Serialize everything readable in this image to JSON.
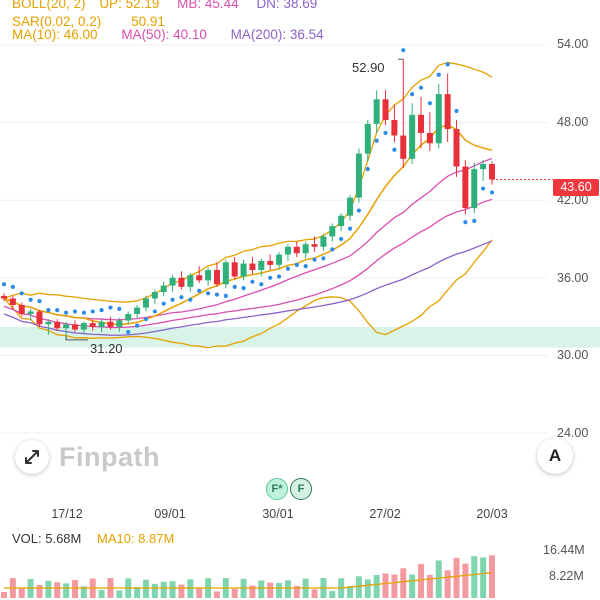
{
  "legend": {
    "boll": "BOLL(20, 2)",
    "up": "UP: 52.19",
    "mb": "MB: 45.44",
    "dn": "DN: 38.69",
    "sar": "SAR(0.02, 0.2)",
    "sar_value": "50.91",
    "ma10": "MA(10): 46.00",
    "ma50": "MA(50): 40.10",
    "ma200": "MA(200): 36.54"
  },
  "colors": {
    "boll": "#e6a100",
    "sar": "#2b8be6",
    "ma10": "#e6a100",
    "ma50": "#d94fb0",
    "ma200": "#8a64c8",
    "up_candle": "#2fb07a",
    "down_candle": "#e8303a",
    "zone": "#d8f3e8",
    "vol_up": "#7fd6ae",
    "vol_down": "#f29a9f"
  },
  "price_axis": [
    "54.00",
    "48.00",
    "42.00",
    "36.00",
    "30.00",
    "24.00"
  ],
  "date_axis": [
    "17/12",
    "09/01",
    "30/01",
    "27/02",
    "20/03"
  ],
  "annotations": {
    "high": "52.90",
    "low": "31.20",
    "current_price": "43.60"
  },
  "brand": {
    "name": "Finpath",
    "expand_icon": "expand-arrows-icon"
  },
  "buttons": {
    "a_label": "A",
    "f_star": "F*",
    "f": "F"
  },
  "volume": {
    "vol": "VOL: 5.68M",
    "ma10": "MA10: 8.87M",
    "axis_top": "16.44M",
    "axis_mid": "8.22M"
  },
  "chart_data": {
    "type": "candlestick",
    "y_range": [
      24,
      56
    ],
    "support_zone": [
      30.6,
      32.2
    ],
    "candles": [
      [
        34.6,
        34.8,
        34.2,
        34.4
      ],
      [
        34.4,
        34.6,
        33.6,
        33.9
      ],
      [
        33.9,
        34.1,
        33.0,
        33.2
      ],
      [
        33.2,
        33.6,
        32.7,
        33.4
      ],
      [
        33.4,
        33.5,
        32.2,
        32.4
      ],
      [
        32.4,
        32.8,
        31.6,
        32.6
      ],
      [
        32.6,
        32.8,
        31.9,
        32.1
      ],
      [
        32.1,
        32.6,
        31.2,
        32.4
      ],
      [
        32.4,
        32.7,
        31.8,
        32.0
      ],
      [
        32.0,
        32.6,
        31.7,
        32.5
      ],
      [
        32.5,
        32.7,
        31.9,
        32.2
      ],
      [
        32.2,
        32.8,
        31.8,
        32.6
      ],
      [
        32.6,
        33.0,
        32.0,
        32.2
      ],
      [
        32.2,
        32.9,
        31.8,
        32.7
      ],
      [
        32.7,
        33.4,
        32.4,
        33.2
      ],
      [
        33.2,
        33.9,
        32.9,
        33.7
      ],
      [
        33.7,
        34.6,
        33.4,
        34.4
      ],
      [
        34.4,
        35.1,
        34.0,
        34.9
      ],
      [
        34.9,
        35.7,
        34.6,
        35.4
      ],
      [
        35.4,
        36.2,
        34.9,
        36.0
      ],
      [
        36.0,
        36.5,
        35.1,
        35.3
      ],
      [
        35.3,
        36.4,
        34.9,
        36.2
      ],
      [
        36.2,
        36.9,
        35.6,
        35.8
      ],
      [
        35.8,
        36.8,
        35.4,
        36.6
      ],
      [
        36.6,
        37.2,
        35.3,
        35.5
      ],
      [
        35.5,
        37.4,
        35.2,
        37.2
      ],
      [
        37.2,
        37.6,
        35.9,
        36.1
      ],
      [
        36.1,
        37.4,
        35.8,
        37.1
      ],
      [
        37.1,
        37.6,
        36.3,
        36.6
      ],
      [
        36.6,
        37.5,
        36.1,
        37.3
      ],
      [
        37.3,
        37.8,
        36.6,
        37.0
      ],
      [
        37.0,
        38.0,
        36.7,
        37.8
      ],
      [
        37.8,
        38.6,
        37.3,
        38.4
      ],
      [
        38.4,
        38.8,
        37.6,
        37.9
      ],
      [
        37.9,
        38.8,
        37.5,
        38.6
      ],
      [
        38.6,
        39.2,
        38.0,
        38.4
      ],
      [
        38.4,
        39.4,
        38.1,
        39.2
      ],
      [
        39.2,
        40.2,
        38.8,
        40.0
      ],
      [
        40.0,
        41.0,
        39.6,
        40.8
      ],
      [
        40.8,
        42.4,
        40.4,
        42.2
      ],
      [
        42.2,
        46.0,
        41.8,
        45.6
      ],
      [
        45.6,
        48.2,
        45.0,
        47.9
      ],
      [
        47.9,
        50.5,
        47.2,
        49.8
      ],
      [
        49.8,
        50.5,
        47.8,
        48.2
      ],
      [
        48.2,
        49.4,
        46.5,
        47.0
      ],
      [
        47.0,
        52.9,
        44.5,
        45.2
      ],
      [
        45.2,
        49.5,
        44.8,
        48.6
      ],
      [
        48.6,
        50.0,
        46.0,
        47.2
      ],
      [
        47.2,
        48.8,
        45.8,
        46.4
      ],
      [
        46.4,
        51.0,
        46.0,
        50.2
      ],
      [
        50.2,
        51.8,
        46.5,
        47.5
      ],
      [
        47.5,
        48.2,
        43.8,
        44.6
      ],
      [
        44.6,
        45.1,
        40.9,
        41.4
      ],
      [
        41.4,
        44.9,
        41.0,
        44.4
      ],
      [
        44.4,
        45.1,
        43.5,
        44.8
      ],
      [
        44.8,
        45.0,
        43.2,
        43.6
      ]
    ]
  }
}
